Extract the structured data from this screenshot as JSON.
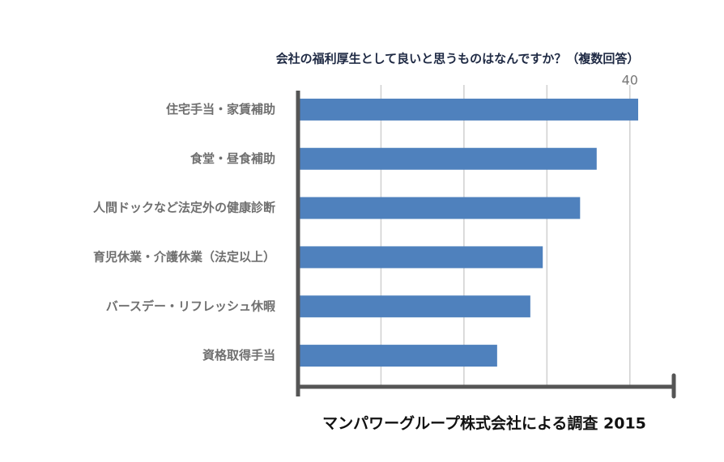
{
  "chart_data": {
    "type": "bar",
    "orientation": "horizontal",
    "title": "会社の福利厚生として良いと思うものはなんですか？（複数回答）",
    "source": "マンパワーグループ株式会社による調査 2015",
    "categories": [
      "住宅手当・家賃補助",
      "食堂・昼食補助",
      "人間ドックなど法定外の健康診断",
      "育児休業・介護休業（法定以上）",
      "バースデー・リフレッシュ休暇",
      "資格取得手当"
    ],
    "values": [
      41,
      36,
      34,
      29.5,
      28,
      24
    ],
    "color": "#4f81bd",
    "xlim": [
      0,
      45
    ],
    "xticks": [
      40
    ],
    "gridlines": [
      10,
      20,
      30,
      40
    ],
    "grid": true
  }
}
